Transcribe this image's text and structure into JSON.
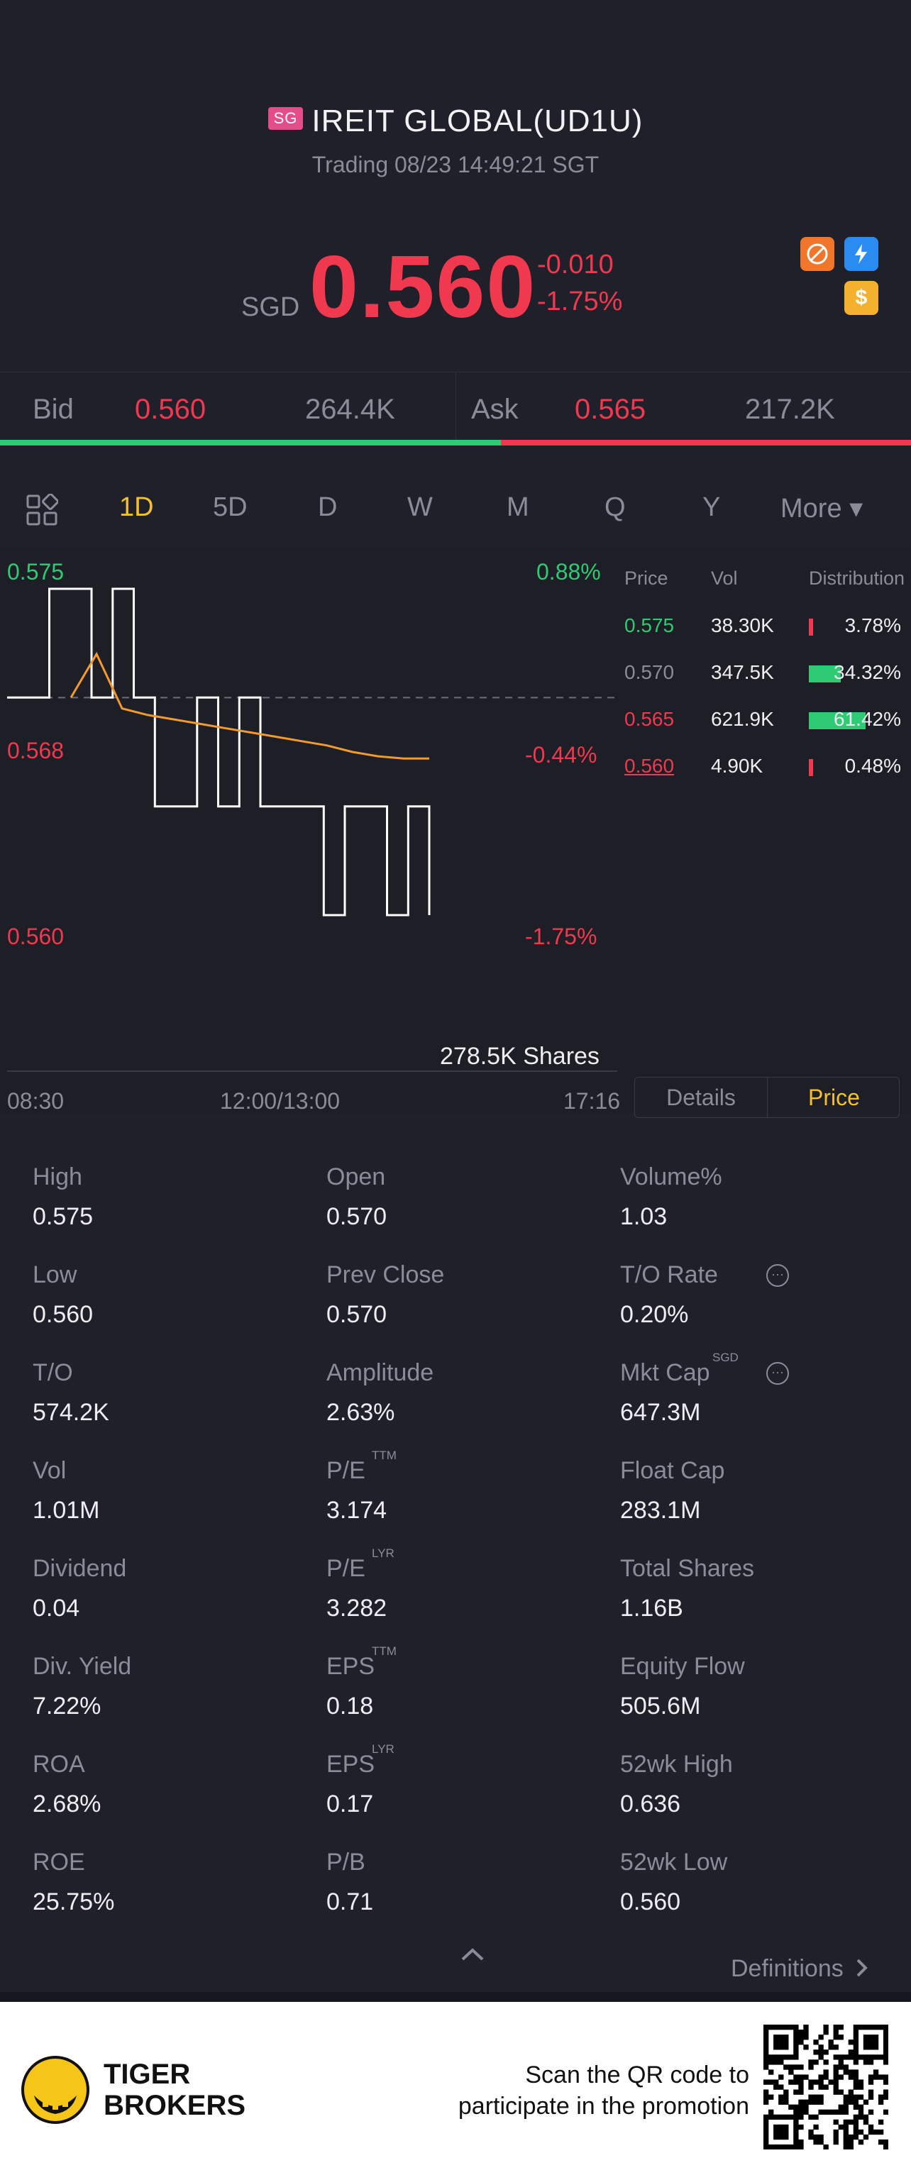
{
  "header": {
    "badge": "SG",
    "title": "IREIT GLOBAL(UD1U)",
    "subtitle": "Trading 08/23 14:49:21 SGT"
  },
  "quote": {
    "currency": "SGD",
    "price": "0.560",
    "change": "-0.010",
    "change_pct": "-1.75%",
    "colors": {
      "down": "#f0384f",
      "up": "#2ecb74",
      "accent": "#f3c12d"
    },
    "icons": [
      "no-short-icon",
      "flash-icon",
      "dollar-icon"
    ]
  },
  "bidask": {
    "bid_label": "Bid",
    "bid_price": "0.560",
    "bid_size": "264.4K",
    "ask_label": "Ask",
    "ask_price": "0.565",
    "ask_size": "217.2K",
    "bid_ratio": 0.55
  },
  "tabs": [
    "1D",
    "5D",
    "D",
    "W",
    "M",
    "Q",
    "Y",
    "More ▾"
  ],
  "active_tab": "1D",
  "chart_data": {
    "type": "line",
    "y_left_labels": [
      "0.575",
      "0.568",
      "0.560"
    ],
    "y_right_labels": [
      "0.88%",
      "-0.44%",
      "-1.75%"
    ],
    "x_labels": [
      "08:30",
      "12:00/13:00",
      "17:16"
    ],
    "ylim": [
      0.56,
      0.575
    ],
    "prev_close": 0.57,
    "price_series": [
      0.57,
      0.57,
      0.575,
      0.575,
      0.57,
      0.575,
      0.57,
      0.565,
      0.565,
      0.57,
      0.565,
      0.57,
      0.565,
      0.565,
      0.565,
      0.56,
      0.565,
      0.565,
      0.56,
      0.565,
      0.56
    ],
    "avg_series": [
      0.57,
      0.572,
      0.5695,
      0.5692,
      0.569,
      0.5688,
      0.5686,
      0.5684,
      0.5682,
      0.568,
      0.5678,
      0.5675,
      0.5673,
      0.5672,
      0.5672
    ],
    "volume_label": "278.5K Shares"
  },
  "distribution": {
    "headers": [
      "Price",
      "Vol",
      "Distribution"
    ],
    "rows": [
      {
        "price": "0.575",
        "vol": "38.30K",
        "pct": "3.78%",
        "share": 0.0378,
        "color": "#2ecb74"
      },
      {
        "price": "0.570",
        "vol": "347.5K",
        "pct": "34.32%",
        "share": 0.3432,
        "color": "#8b8c98"
      },
      {
        "price": "0.565",
        "vol": "621.9K",
        "pct": "61.42%",
        "share": 0.6142,
        "color": "#f0384f"
      },
      {
        "price": "0.560",
        "vol": "4.90K",
        "pct": "0.48%",
        "share": 0.0048,
        "color": "#f0384f"
      }
    ]
  },
  "toggle": {
    "details": "Details",
    "price": "Price"
  },
  "stats": [
    {
      "label": "High",
      "value": "0.575"
    },
    {
      "label": "Open",
      "value": "0.570"
    },
    {
      "label": "Volume%",
      "value": "1.03"
    },
    {
      "label": "Low",
      "value": "0.560"
    },
    {
      "label": "Prev Close",
      "value": "0.570"
    },
    {
      "label": "T/O Rate",
      "value": "0.20%"
    },
    {
      "label": "T/O",
      "value": "574.2K"
    },
    {
      "label": "Amplitude",
      "value": "2.63%"
    },
    {
      "label": "Mkt Cap",
      "value": "647.3M",
      "sup": "SGD"
    },
    {
      "label": "Vol",
      "value": "1.01M"
    },
    {
      "label": "P/E",
      "value": "3.174",
      "sup": "TTM"
    },
    {
      "label": "Float Cap",
      "value": "283.1M"
    },
    {
      "label": "Dividend",
      "value": "0.04"
    },
    {
      "label": "P/E",
      "value": "3.282",
      "sup": "LYR"
    },
    {
      "label": "Total Shares",
      "value": "1.16B"
    },
    {
      "label": "Div. Yield",
      "value": "7.22%"
    },
    {
      "label": "EPS",
      "value": "0.18",
      "sup": "TTM"
    },
    {
      "label": "Equity Flow",
      "value": "505.6M"
    },
    {
      "label": "ROA",
      "value": "2.68%"
    },
    {
      "label": "EPS",
      "value": "0.17",
      "sup": "LYR"
    },
    {
      "label": "52wk High",
      "value": "0.636"
    },
    {
      "label": "ROE",
      "value": "25.75%"
    },
    {
      "label": "P/B",
      "value": "0.71"
    },
    {
      "label": "52wk Low",
      "value": "0.560"
    }
  ],
  "definitions": "Definitions",
  "footer": {
    "brand_line1": "TIGER",
    "brand_line2": "BROKERS",
    "promo_line1": "Scan the QR code to",
    "promo_line2": "participate in the promotion"
  }
}
